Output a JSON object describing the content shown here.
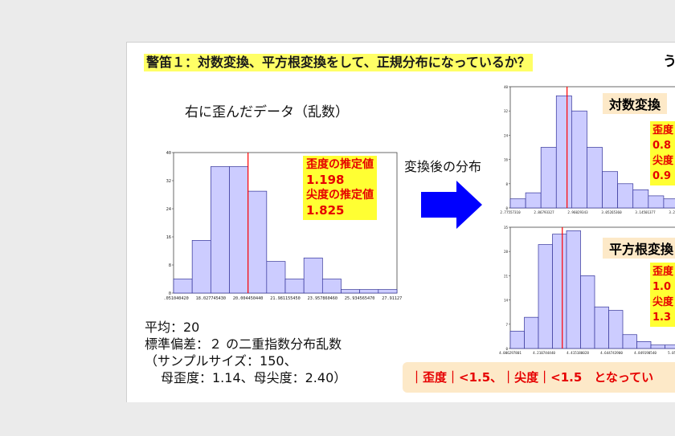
{
  "slide": {
    "title": "警笛１：対数変換、平方根変換をして、正規分布になっているか？",
    "title_overflow": "う",
    "left_caption": "右に歪んだデータ（乱数）",
    "mid_caption": "変換後の分布",
    "left_stats": {
      "skew_label": "歪度の推定値",
      "skew_value": "1.198",
      "kurt_label": "尖度の推定値",
      "kurt_value": "1.825"
    },
    "log_label": "対数変換",
    "log_stats": [
      "歪度",
      "0.8",
      "尖度",
      "0.9"
    ],
    "sqrt_label": "平方根変換",
    "sqrt_stats": [
      "歪度",
      "1.0",
      "尖度",
      "1.3"
    ],
    "dist_info": {
      "mean": "平均：20",
      "sd": "標準偏差：２ の二重指数分布乱数",
      "sample": "（サンプルサイズ：150、",
      "params": "母歪度：1.14、母尖度：2.40）"
    },
    "conclusion": "｜歪度｜<1.5、｜尖度｜<1.5　となってい",
    "colors": {
      "title_bg": "#ffff66",
      "stat_bg": "#ffff33",
      "stat_text": "#e60000",
      "label_bg": "#fde9c8",
      "arrow": "#0000ff",
      "bar_fill": "#ccccff",
      "mean_line": "#ff0000"
    }
  },
  "chart_data": [
    {
      "type": "bar",
      "title": "",
      "xlabel": "",
      "ylabel": "",
      "ylim": [
        0,
        40
      ],
      "yticks": [
        "0",
        "8",
        "16",
        "24",
        "32",
        "40"
      ],
      "xticks": [
        "16.051040420",
        "18.027745430",
        "20.004450440",
        "21.981155450",
        "23.957860460",
        "25.934565470",
        "27.911270480"
      ],
      "values": [
        4,
        15,
        36,
        36,
        29,
        9,
        4,
        10,
        4,
        1,
        1,
        1
      ],
      "mean_bin": 4.0,
      "grid": false
    },
    {
      "type": "bar",
      "title": "",
      "xlabel": "",
      "ylabel": "",
      "ylim": [
        0,
        40
      ],
      "yticks": [
        "0",
        "8",
        "16",
        "24",
        "32",
        "40"
      ],
      "xticks": [
        "2.77557310",
        "2.86793327",
        "2.96029343",
        "3.05265360",
        "3.14501377",
        "3.23737393"
      ],
      "values": [
        3,
        5,
        20,
        37,
        32,
        20,
        12,
        8,
        6,
        4,
        3
      ],
      "mean_bin": 3.7,
      "grid": false
    },
    {
      "type": "bar",
      "title": "",
      "xlabel": "",
      "ylabel": "",
      "ylim": [
        0,
        35
      ],
      "yticks": [
        "0",
        "7",
        "14",
        "21",
        "28",
        "35"
      ],
      "xticks": [
        "4.006297801",
        "4.210744440",
        "4.415180028",
        "4.644743900",
        "4.849190540",
        "5.053623471"
      ],
      "values": [
        5,
        9,
        30,
        33,
        34,
        21,
        12,
        11,
        4,
        2,
        1,
        1
      ],
      "mean_bin": 3.7,
      "grid": false
    }
  ]
}
